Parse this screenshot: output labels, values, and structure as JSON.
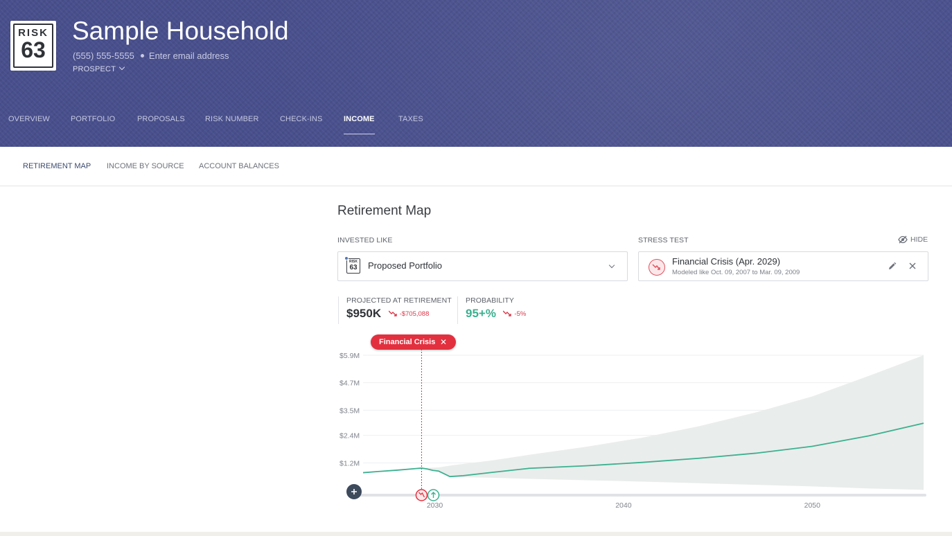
{
  "household": {
    "risk_label": "RISK",
    "risk_number": "63",
    "name": "Sample Household",
    "phone": "(555) 555-5555",
    "email_placeholder": "Enter email address",
    "status": "PROSPECT"
  },
  "main_tabs": [
    {
      "label": "OVERVIEW",
      "active": false
    },
    {
      "label": "PORTFOLIO",
      "active": false
    },
    {
      "label": "PROPOSALS",
      "active": false
    },
    {
      "label": "RISK NUMBER",
      "active": false
    },
    {
      "label": "CHECK-INS",
      "active": false
    },
    {
      "label": "INCOME",
      "active": true
    },
    {
      "label": "TAXES",
      "active": false
    }
  ],
  "sub_tabs": [
    {
      "label": "RETIREMENT MAP",
      "active": true
    },
    {
      "label": "INCOME BY SOURCE",
      "active": false
    },
    {
      "label": "ACCOUNT BALANCES",
      "active": false
    }
  ],
  "retirement_map": {
    "title": "Retirement Map",
    "invested_like_label": "INVESTED LIKE",
    "invested_like_value": "Proposed Portfolio",
    "mini_badge_word": "RISK",
    "mini_badge_number": "63",
    "stress_test_label": "STRESS TEST",
    "hide_label": "HIDE",
    "stress_test_title": "Financial Crisis (Apr. 2029)",
    "stress_test_subtitle": "Modeled like Oct. 09, 2007 to Mar. 09, 2009"
  },
  "stats": {
    "projected_label": "PROJECTED AT RETIREMENT",
    "projected_value": "$950K",
    "projected_change": "-$705,088",
    "probability_label": "PROBABILITY",
    "probability_value": "95+%",
    "probability_change": "-5%"
  },
  "colors": {
    "header": "#484f8c",
    "line": "#3bb08f",
    "band": "#e9edeb",
    "crisis": "#e3303f",
    "marker_retirement": "#3bb08f",
    "add_button": "#3d4a5c"
  },
  "chart_data": {
    "type": "line",
    "event_label": "Financial Crisis",
    "y_ticks": [
      "$5.9M",
      "$4.7M",
      "$3.5M",
      "$2.4M",
      "$1.2M"
    ],
    "y_tick_values": [
      5.9,
      4.7,
      3.5,
      2.4,
      1.2
    ],
    "x_ticks": [
      "2030",
      "2040",
      "2050"
    ],
    "x_tick_values": [
      2030,
      2040,
      2050
    ],
    "ylim": [
      0,
      5.9
    ],
    "xlim": [
      2026.2,
      2055.9
    ],
    "event_year": 2029.3,
    "retirement_year": 2030.0,
    "series": [
      {
        "x": [
          2026.2,
          2027,
          2028,
          2029,
          2029.3,
          2029.6,
          2029.9,
          2030.2,
          2030.5,
          2030.8,
          2031.5,
          2033,
          2035,
          2038,
          2041,
          2044,
          2047,
          2050,
          2053,
          2055.9
        ],
        "values": [
          0.77,
          0.82,
          0.88,
          0.95,
          0.97,
          0.93,
          0.87,
          0.84,
          0.72,
          0.6,
          0.64,
          0.78,
          0.96,
          1.07,
          1.22,
          1.4,
          1.62,
          1.92,
          2.38,
          2.93
        ]
      }
    ],
    "band_upper": {
      "x": [
        2029.3,
        2030.2,
        2031,
        2033,
        2035,
        2038,
        2041,
        2044,
        2047,
        2050,
        2053,
        2055.9
      ],
      "values": [
        0.97,
        1.0,
        1.1,
        1.3,
        1.55,
        1.9,
        2.3,
        2.8,
        3.4,
        4.1,
        5.0,
        5.9
      ]
    },
    "band_lower": {
      "x": [
        2029.3,
        2030.2,
        2031,
        2033,
        2035,
        2038,
        2041,
        2044,
        2047,
        2050,
        2053,
        2055.9
      ],
      "values": [
        0.97,
        0.8,
        0.58,
        0.55,
        0.5,
        0.44,
        0.38,
        0.31,
        0.24,
        0.17,
        0.08,
        0.02
      ]
    },
    "grid": true
  }
}
